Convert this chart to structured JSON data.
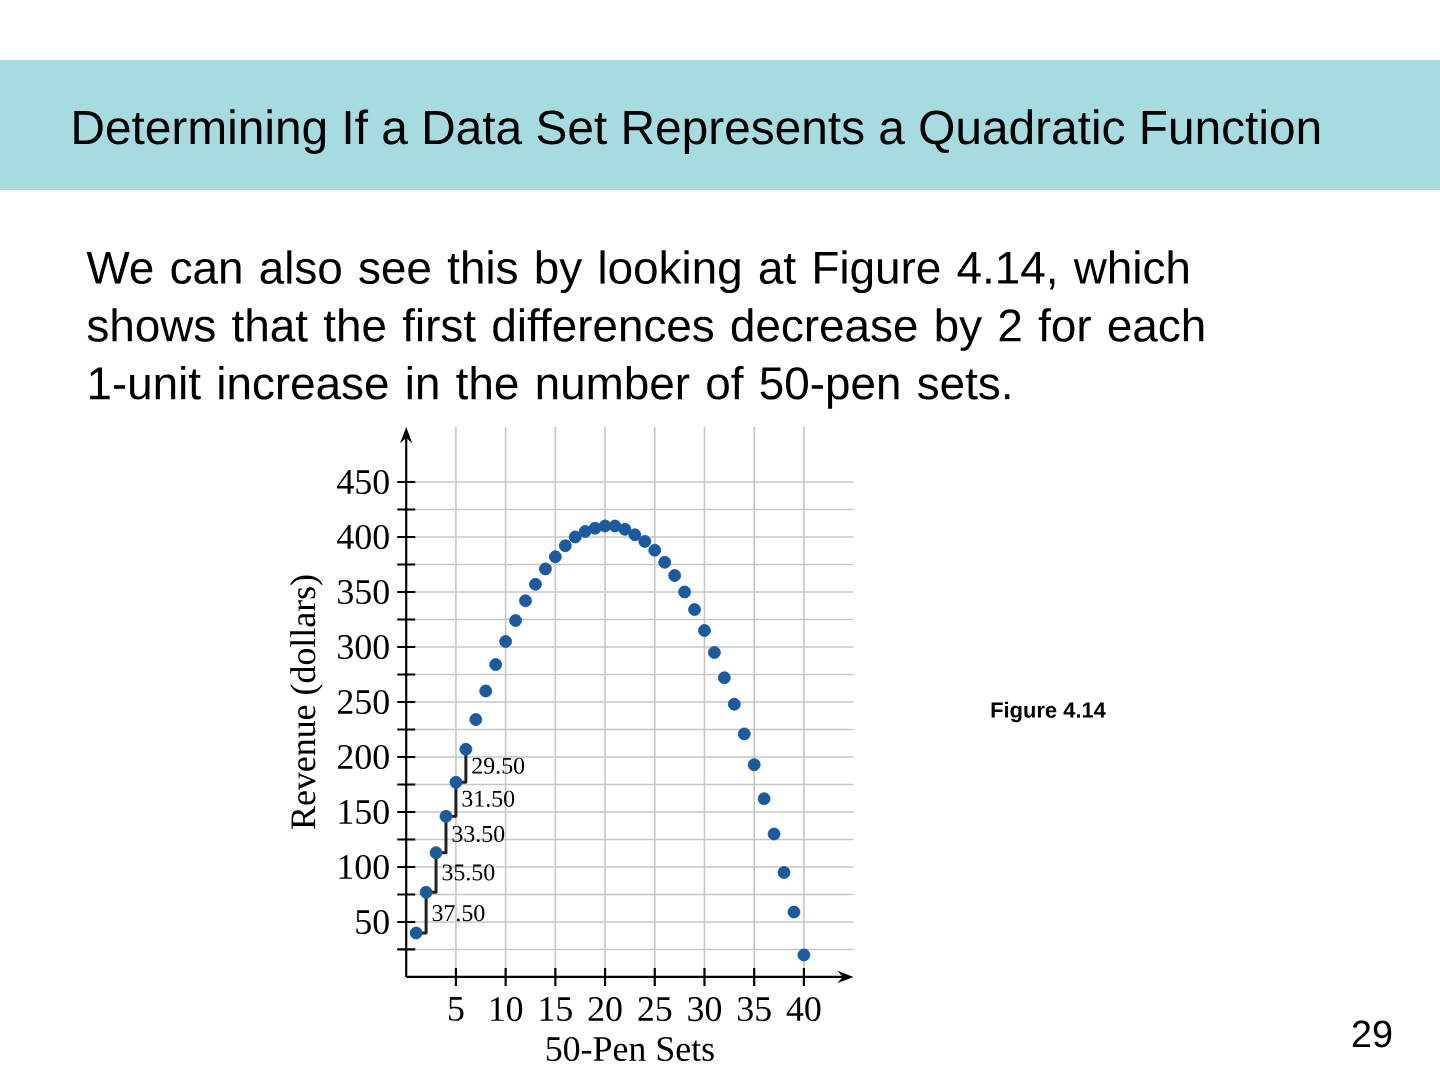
{
  "chart_data": {
    "type": "scatter",
    "title": "Determining If a Data Set Represents a Quadratic Function",
    "subtitle": "We can also see this by looking at Figure 4.14, which shows that the first differences decrease by 2 for each 1-unit increase in the number of 50-pen sets.",
    "xlabel": "50-Pen Sets",
    "ylabel": "Revenue (dollars)",
    "annotations": [
      {
        "text": "29.50",
        "x": 6,
        "y": 192
      },
      {
        "text": "31.50",
        "x": 5,
        "y": 162
      },
      {
        "text": "33.50",
        "x": 4,
        "y": 130
      },
      {
        "text": "35.50",
        "x": 3,
        "y": 95
      },
      {
        "text": "37.50",
        "x": 2,
        "y": 58
      },
      "Figure 4.14",
      "29"
    ],
    "xlim": [
      0,
      45
    ],
    "ylim": [
      0,
      500
    ],
    "xticks": [
      5,
      10,
      15,
      20,
      25,
      30,
      35,
      40
    ],
    "yticks": [
      {
        "value": 25,
        "label": null
      },
      50,
      {
        "value": 75,
        "label": null
      },
      100,
      {
        "value": 125,
        "label": null
      },
      150,
      {
        "value": 175,
        "label": null
      },
      200,
      {
        "value": 225,
        "label": null
      },
      250,
      {
        "value": 275,
        "label": null
      },
      300,
      {
        "value": 325,
        "label": null
      },
      350,
      {
        "value": 375,
        "label": null
      },
      400,
      {
        "value": 425,
        "label": null
      },
      450
    ],
    "grid": true,
    "series": [
      {
        "type": "step",
        "color": "#231f20",
        "x": [
          1,
          2,
          3,
          4,
          5,
          6
        ],
        "values": [
          40,
          77,
          113,
          146,
          177,
          207
        ]
      },
      {
        "type": "scatter",
        "color": "#1a5a9e",
        "x": [
          1,
          2,
          3,
          4,
          5,
          6,
          7,
          8,
          9,
          10,
          11,
          12,
          13,
          14,
          15,
          16,
          17,
          18,
          19,
          20,
          21,
          22,
          23,
          24,
          25,
          26,
          27,
          28,
          29,
          30,
          31,
          32,
          33,
          34,
          35,
          36,
          37,
          38,
          39,
          40
        ],
        "values": [
          40,
          77,
          113,
          146,
          177,
          207,
          234,
          260,
          284,
          305,
          324,
          342,
          357,
          371,
          382,
          392,
          400,
          405,
          408,
          410,
          410,
          407,
          402,
          396,
          388,
          377,
          365,
          350,
          334,
          315,
          295,
          272,
          248,
          221,
          193,
          162,
          130,
          95,
          59,
          20
        ]
      }
    ]
  }
}
